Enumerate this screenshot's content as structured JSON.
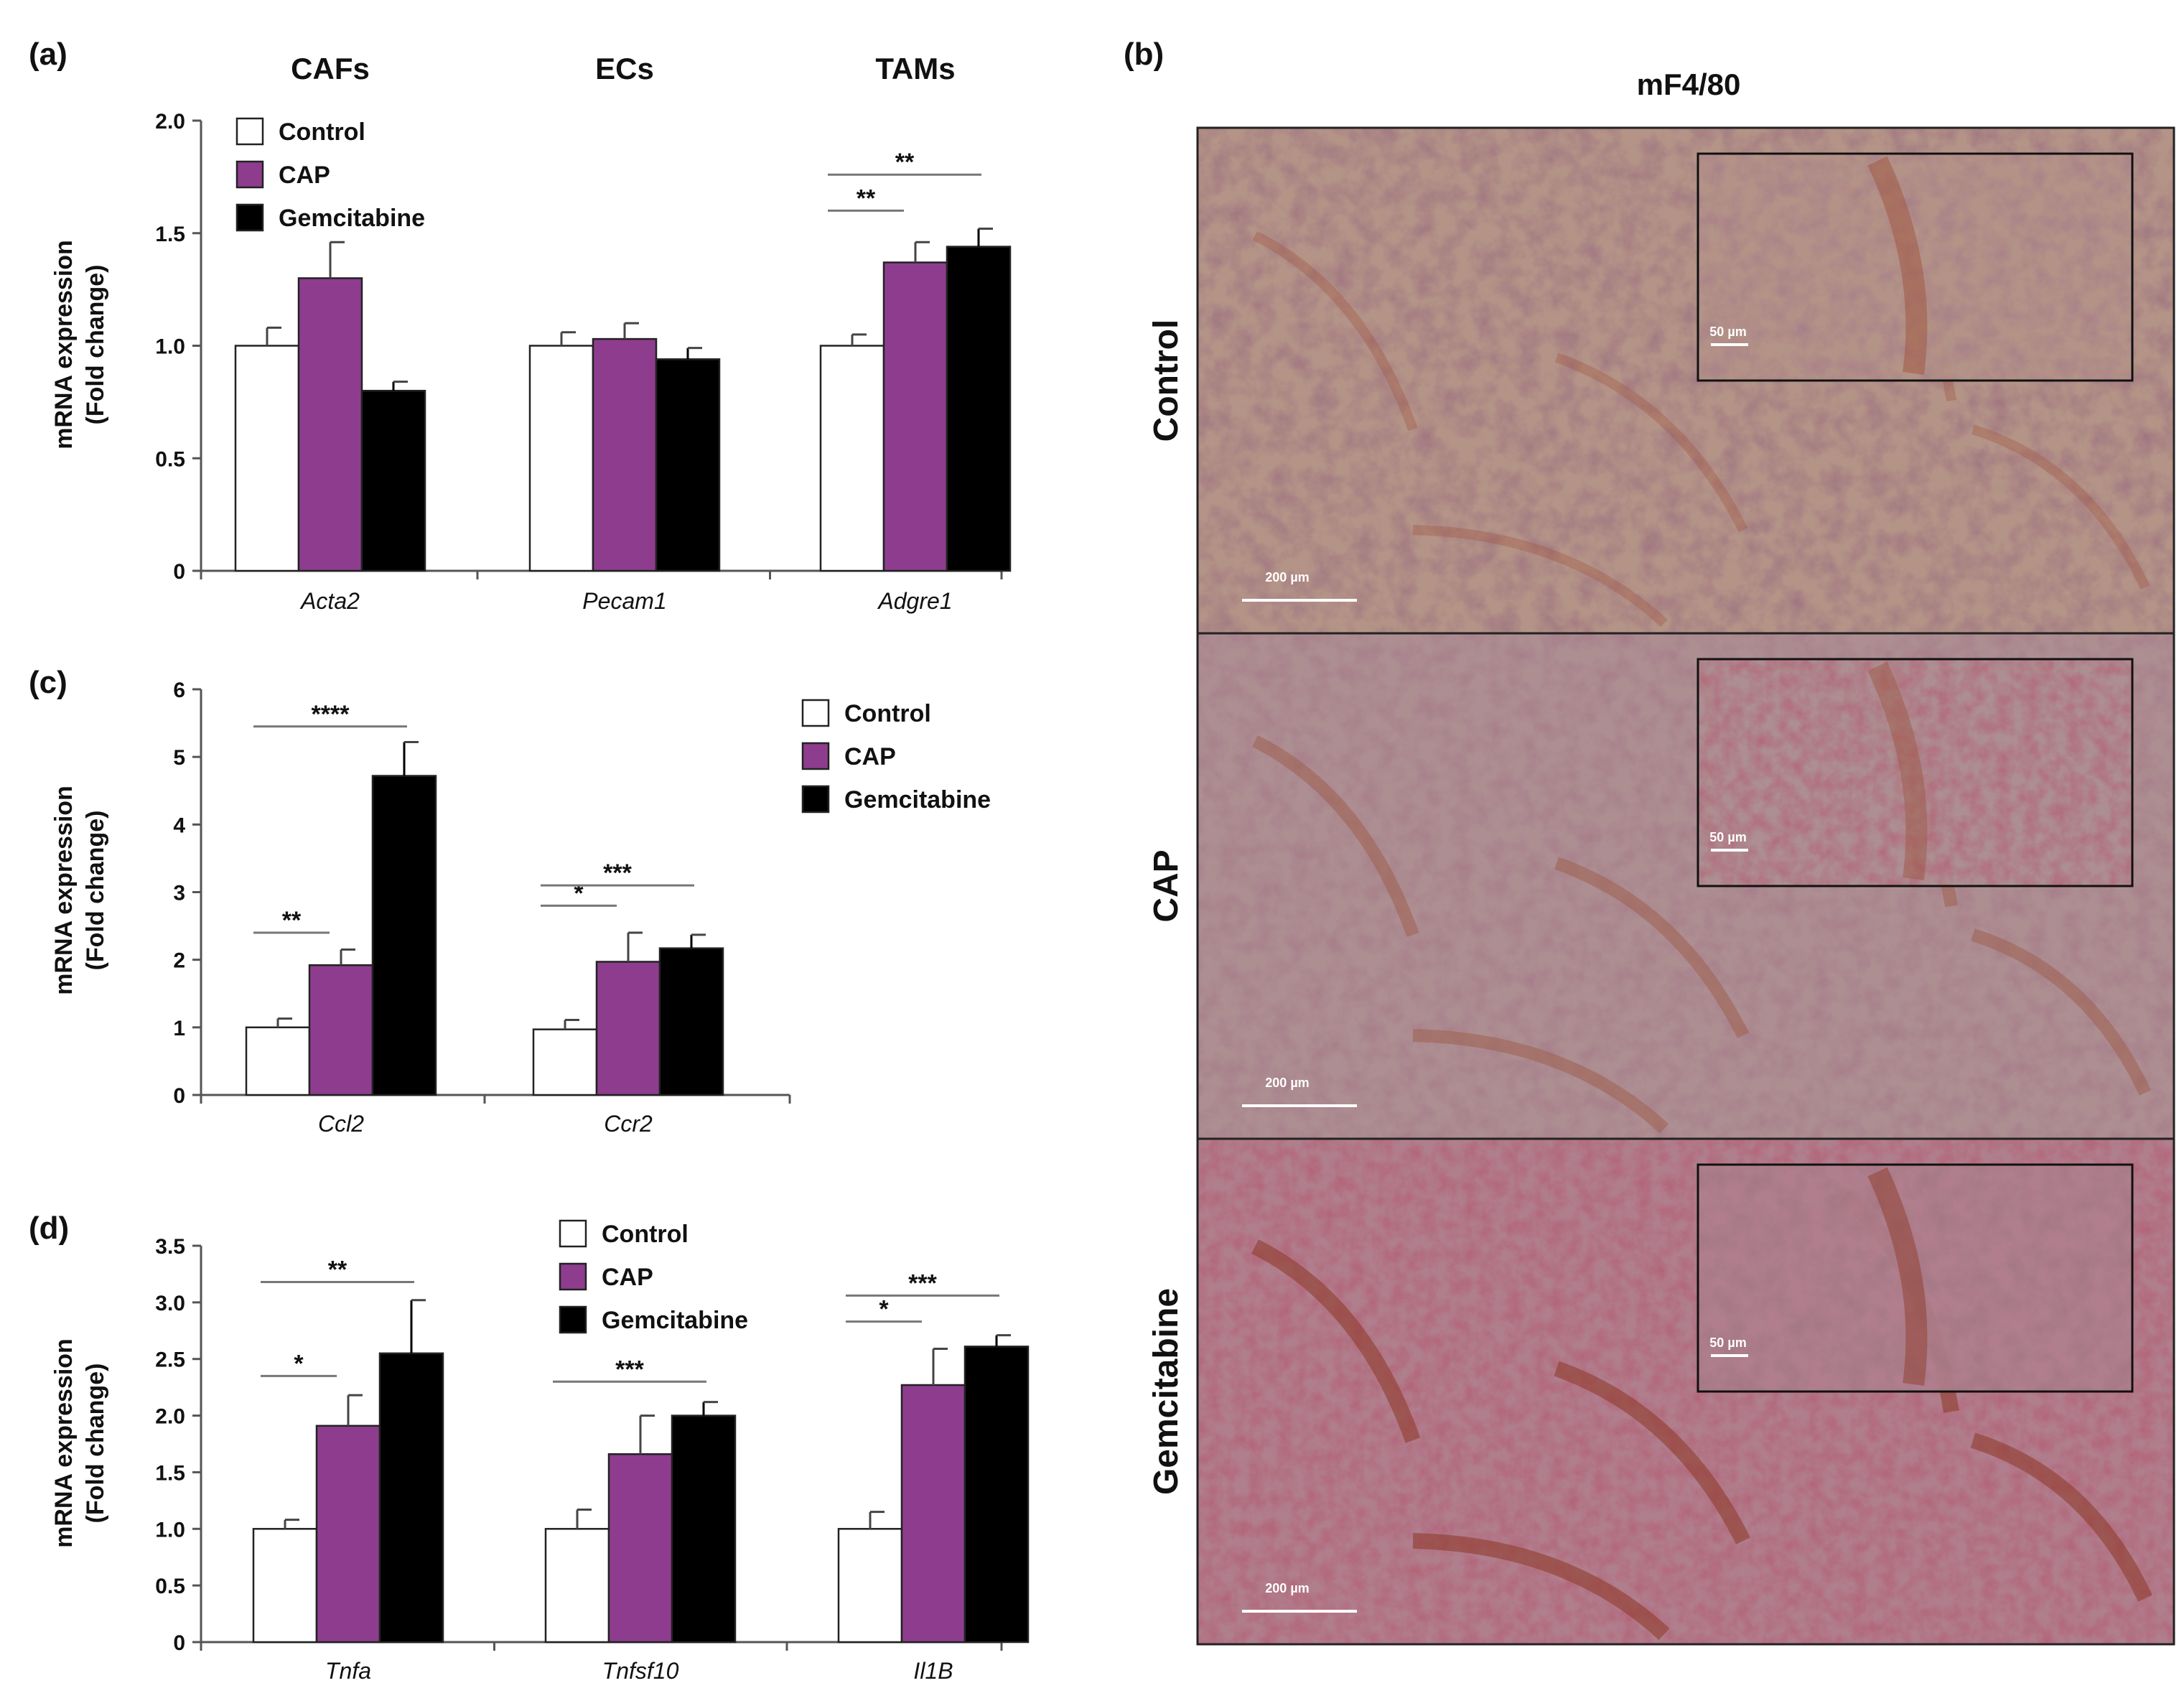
{
  "colors": {
    "control": "#ffffff",
    "cap": "#8e3d8e",
    "gemcitabine": "#000000"
  },
  "chart_data": [
    {
      "id": "a",
      "type": "bar",
      "panel_label": "(a)",
      "group_titles": [
        "CAFs",
        "ECs",
        "TAMs"
      ],
      "categories": [
        "Acta2",
        "Pecam1",
        "Adgre1"
      ],
      "ylabel": [
        "mRNA expression",
        "(Fold change)"
      ],
      "ylim": [
        0,
        2.0
      ],
      "yticks": [
        "0",
        "0.5",
        "1.0",
        "1.5",
        "2.0"
      ],
      "legend_position": "top-left",
      "series": [
        {
          "name": "Control",
          "values": [
            1.0,
            1.0,
            1.0
          ],
          "errors": [
            0.08,
            0.06,
            0.05
          ]
        },
        {
          "name": "CAP",
          "values": [
            1.3,
            1.03,
            1.37
          ],
          "errors": [
            0.16,
            0.07,
            0.09
          ]
        },
        {
          "name": "Gemcitabine",
          "values": [
            0.8,
            0.94,
            1.44
          ],
          "errors": [
            0.04,
            0.05,
            0.08
          ]
        }
      ],
      "annotations": [
        {
          "category": 2,
          "from": 0,
          "to": 1,
          "level": 1.6,
          "label": "**"
        },
        {
          "category": 2,
          "from": 0,
          "to": 2,
          "level": 1.76,
          "label": "**"
        }
      ]
    },
    {
      "id": "c",
      "type": "bar",
      "panel_label": "(c)",
      "categories": [
        "Ccl2",
        "Ccr2"
      ],
      "ylabel": [
        "mRNA expression",
        "(Fold change)"
      ],
      "ylim": [
        0,
        6
      ],
      "yticks": [
        "0",
        "1",
        "2",
        "3",
        "4",
        "5",
        "6"
      ],
      "legend_position": "right",
      "series": [
        {
          "name": "Control",
          "values": [
            1.0,
            0.97
          ],
          "errors": [
            0.13,
            0.14
          ]
        },
        {
          "name": "CAP",
          "values": [
            1.92,
            1.97
          ],
          "errors": [
            0.23,
            0.43
          ]
        },
        {
          "name": "Gemcitabine",
          "values": [
            4.72,
            2.17
          ],
          "errors": [
            0.5,
            0.2
          ]
        }
      ],
      "annotations": [
        {
          "category": 0,
          "from": 0,
          "to": 1,
          "level": 2.4,
          "label": "**"
        },
        {
          "category": 0,
          "from": 0,
          "to": 2,
          "level": 5.45,
          "label": "****"
        },
        {
          "category": 1,
          "from": 0,
          "to": 1,
          "level": 2.8,
          "label": "*"
        },
        {
          "category": 1,
          "from": 0,
          "to": 2,
          "level": 3.1,
          "label": "***"
        }
      ]
    },
    {
      "id": "d",
      "type": "bar",
      "panel_label": "(d)",
      "categories": [
        "Tnfa",
        "Tnfsf10",
        "Il1B"
      ],
      "ylabel": [
        "mRNA expression",
        "(Fold change)"
      ],
      "ylim": [
        0,
        3.5
      ],
      "yticks": [
        "0",
        "0.5",
        "1.0",
        "1.5",
        "2.0",
        "2.5",
        "3.0",
        "3.5"
      ],
      "legend_position": "top-center",
      "series": [
        {
          "name": "Control",
          "values": [
            1.0,
            1.0,
            1.0
          ],
          "errors": [
            0.08,
            0.17,
            0.15
          ]
        },
        {
          "name": "CAP",
          "values": [
            1.91,
            1.66,
            2.27
          ],
          "errors": [
            0.27,
            0.34,
            0.32
          ]
        },
        {
          "name": "Gemcitabine",
          "values": [
            2.55,
            2.0,
            2.61
          ],
          "errors": [
            0.47,
            0.12,
            0.1
          ]
        }
      ],
      "annotations": [
        {
          "category": 0,
          "from": 0,
          "to": 1,
          "level": 2.35,
          "label": "*"
        },
        {
          "category": 0,
          "from": 0,
          "to": 2,
          "level": 3.18,
          "label": "**"
        },
        {
          "category": 1,
          "from": 0,
          "to": 2,
          "level": 2.3,
          "label": "***"
        },
        {
          "category": 2,
          "from": 0,
          "to": 1,
          "level": 2.83,
          "label": "*"
        },
        {
          "category": 2,
          "from": 0,
          "to": 2,
          "level": 3.06,
          "label": "***"
        }
      ]
    }
  ],
  "micrographs": {
    "panel_label": "(b)",
    "title": "mF4/80",
    "rows": [
      {
        "label": "Control",
        "scale_main": "200 µm",
        "scale_inset": "50 µm",
        "base": "#b49487",
        "stain": "#a0543c"
      },
      {
        "label": "CAP",
        "scale_main": "200 µm",
        "scale_inset": "50 µm",
        "base": "#ad8f92",
        "stain": "#9e5a45"
      },
      {
        "label": "Gemcitabine",
        "scale_main": "200 µm",
        "scale_inset": "50 µm",
        "base": "#b07f8e",
        "stain": "#8f3b2a"
      }
    ]
  }
}
